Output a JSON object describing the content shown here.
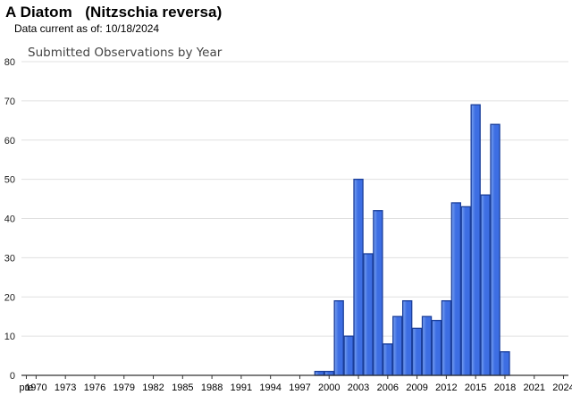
{
  "header": {
    "title": "A Diatom   (Nitzschia reversa)",
    "data_date": "Data current as of: 10/18/2024"
  },
  "colors": {
    "bar_fill_light": "#7aa2f0",
    "bar_fill": "#3d6ee3",
    "bar_stroke": "#1a3e9a",
    "grid": "#e0e0e0",
    "axis": "#333333"
  },
  "chart_data": {
    "type": "bar",
    "title": "Submitted Observations by Year",
    "xlabel": "",
    "ylabel": "",
    "ylim": [
      0,
      80
    ],
    "yticks": [
      0,
      10,
      20,
      30,
      40,
      50,
      60,
      70,
      80
    ],
    "grid": true,
    "legend": "none",
    "x_tick_labels": [
      "pre",
      "1970",
      "1973",
      "1976",
      "1979",
      "1982",
      "1985",
      "1988",
      "1991",
      "1994",
      "1997",
      "2000",
      "2003",
      "2006",
      "2009",
      "2012",
      "2015",
      "2018",
      "2021",
      "2024"
    ],
    "categories": [
      "pre",
      "1970",
      "1971",
      "1972",
      "1973",
      "1974",
      "1975",
      "1976",
      "1977",
      "1978",
      "1979",
      "1980",
      "1981",
      "1982",
      "1983",
      "1984",
      "1985",
      "1986",
      "1987",
      "1988",
      "1989",
      "1990",
      "1991",
      "1992",
      "1993",
      "1994",
      "1995",
      "1996",
      "1997",
      "1998",
      "1999",
      "2000",
      "2001",
      "2002",
      "2003",
      "2004",
      "2005",
      "2006",
      "2007",
      "2008",
      "2009",
      "2010",
      "2011",
      "2012",
      "2013",
      "2014",
      "2015",
      "2016",
      "2017",
      "2018",
      "2019",
      "2020",
      "2021",
      "2022",
      "2023",
      "2024"
    ],
    "values": [
      0,
      0,
      0,
      0,
      0,
      0,
      0,
      0,
      0,
      0,
      0,
      0,
      0,
      0,
      0,
      0,
      0,
      0,
      0,
      0,
      0,
      0,
      0,
      0,
      0,
      0,
      0,
      0,
      0,
      0,
      1,
      1,
      19,
      10,
      50,
      31,
      42,
      8,
      15,
      19,
      12,
      15,
      14,
      19,
      44,
      43,
      69,
      46,
      64,
      6,
      0,
      0,
      0,
      0,
      0,
      0
    ]
  }
}
